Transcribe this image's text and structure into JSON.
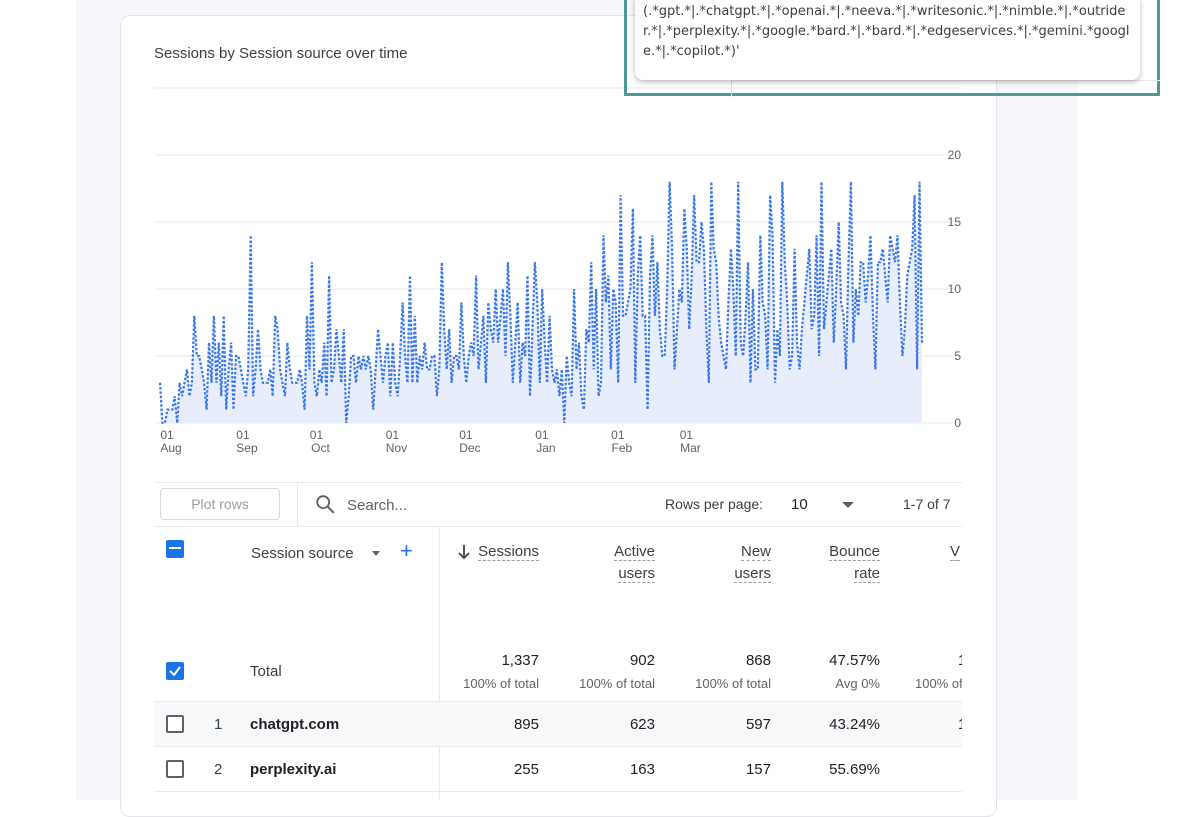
{
  "tooltip": {
    "text": "(.*gpt.*|.*chatgpt.*|.*openai.*|.*neeva.*|.*writesonic.*|.*nimble.*|.*outrider.*|.*perplexity.*|.*google.*bard.*|.*bard.*|.*edgeservices.*|.*gemini.*google.*|.*copilot.*)'"
  },
  "chart": {
    "title": "Sessions by Session source over time",
    "colors": {
      "line": "#3b78e7",
      "area": "#e8edfc",
      "grid": "#e8eaed",
      "axis": "#5f6368"
    }
  },
  "chart_data": {
    "type": "line",
    "title": "Sessions by Session source over time",
    "xlabel": "",
    "ylabel": "",
    "ylim": [
      0,
      25
    ],
    "y_ticks": [
      "0",
      "5",
      "10",
      "15",
      "20"
    ],
    "x_ticks": [
      {
        "day": "01",
        "month": "Aug"
      },
      {
        "day": "01",
        "month": "Sep"
      },
      {
        "day": "01",
        "month": "Oct"
      },
      {
        "day": "01",
        "month": "Nov"
      },
      {
        "day": "01",
        "month": "Dec"
      },
      {
        "day": "01",
        "month": "Jan"
      },
      {
        "day": "01",
        "month": "Feb"
      },
      {
        "day": "01",
        "month": "Mar"
      }
    ],
    "x_tick_index": [
      0,
      31,
      61,
      92,
      122,
      153,
      184,
      212
    ],
    "series": [
      {
        "values": [
          3,
          0,
          0,
          1,
          1,
          1,
          2,
          0,
          3,
          2,
          3,
          4,
          2,
          3,
          8,
          5,
          5,
          4,
          3,
          1,
          6,
          3,
          8,
          3,
          6,
          2,
          8,
          1,
          4,
          6,
          1,
          5,
          5,
          4,
          3,
          2,
          4,
          14,
          2,
          4,
          7,
          4,
          3,
          3,
          3,
          4,
          2,
          8,
          7,
          4,
          3,
          2,
          6,
          4,
          3,
          3,
          3,
          4,
          3,
          1,
          8,
          4,
          12,
          3,
          2,
          4,
          3,
          6,
          2,
          11,
          3,
          4,
          7,
          5,
          3,
          7,
          0,
          2,
          5,
          5,
          3,
          5,
          4,
          5,
          4,
          5,
          4,
          1,
          4,
          7,
          5,
          3,
          5,
          6,
          2,
          6,
          3,
          2,
          5,
          9,
          5,
          3,
          11,
          3,
          8,
          3,
          5,
          4,
          6,
          4,
          4,
          5,
          5,
          2,
          4,
          12,
          7,
          4,
          7,
          3,
          5,
          5,
          4,
          9,
          5,
          3,
          5,
          6,
          5,
          11,
          4,
          6,
          8,
          3,
          9,
          7,
          6,
          10,
          6,
          8,
          10,
          5,
          12,
          8,
          3,
          6,
          9,
          3,
          6,
          5,
          11,
          2,
          7,
          12,
          9,
          3,
          10,
          6,
          3,
          8,
          4,
          3,
          4,
          2,
          4,
          0,
          5,
          3,
          2,
          10,
          4,
          6,
          2,
          1,
          7,
          6,
          12,
          4,
          10,
          2,
          3,
          14,
          9,
          11,
          4,
          10,
          9,
          3,
          17,
          8,
          8,
          9,
          10,
          16,
          3,
          11,
          14,
          8,
          8,
          1,
          11,
          14,
          8,
          12,
          7,
          5,
          5,
          10,
          18,
          13,
          4,
          7,
          10,
          9,
          16,
          13,
          7,
          11,
          17,
          12,
          12,
          15,
          13,
          7,
          3,
          18,
          13,
          12,
          8,
          6,
          5,
          4,
          9,
          13,
          10,
          5,
          18,
          6,
          5,
          8,
          12,
          3,
          10,
          4,
          4,
          14,
          9,
          8,
          4,
          17,
          14,
          3,
          7,
          5,
          18,
          12,
          9,
          4,
          5,
          13,
          6,
          4,
          7,
          9,
          11,
          13,
          7,
          8,
          14,
          5,
          18,
          7,
          9,
          11,
          13,
          6,
          10,
          15,
          9,
          8,
          4,
          12,
          18,
          6,
          10,
          8,
          12,
          12,
          9,
          11,
          14,
          8,
          4,
          12,
          12,
          13,
          11,
          9,
          14,
          13,
          12,
          14,
          9,
          5,
          7,
          11,
          12,
          13,
          17,
          4,
          18,
          6
        ]
      }
    ]
  },
  "toolbar": {
    "plot_rows_label": "Plot rows",
    "search_placeholder": "Search...",
    "rows_per_page_label": "Rows per page:",
    "rows_per_page_value": "10",
    "range_label": "1-7 of 7"
  },
  "table": {
    "dimension_header": "Session source",
    "metric_headers": [
      {
        "line1": "Sessions",
        "line2": ""
      },
      {
        "line1": "Active",
        "line2": "users"
      },
      {
        "line1": "New",
        "line2": "users"
      },
      {
        "line1": "Bounce",
        "line2": "rate"
      },
      {
        "line1": "V",
        "line2": ""
      }
    ],
    "total": {
      "label": "Total",
      "values": [
        "1,337",
        "902",
        "868",
        "47.57%",
        "1"
      ],
      "subs": [
        "100% of total",
        "100% of total",
        "100% of total",
        "Avg 0%",
        "100% of"
      ]
    },
    "rows": [
      {
        "num": "1",
        "name": "chatgpt.com",
        "values": [
          "895",
          "623",
          "597",
          "43.24%",
          "1"
        ]
      },
      {
        "num": "2",
        "name": "perplexity.ai",
        "values": [
          "255",
          "163",
          "157",
          "55.69%",
          ""
        ]
      }
    ]
  }
}
